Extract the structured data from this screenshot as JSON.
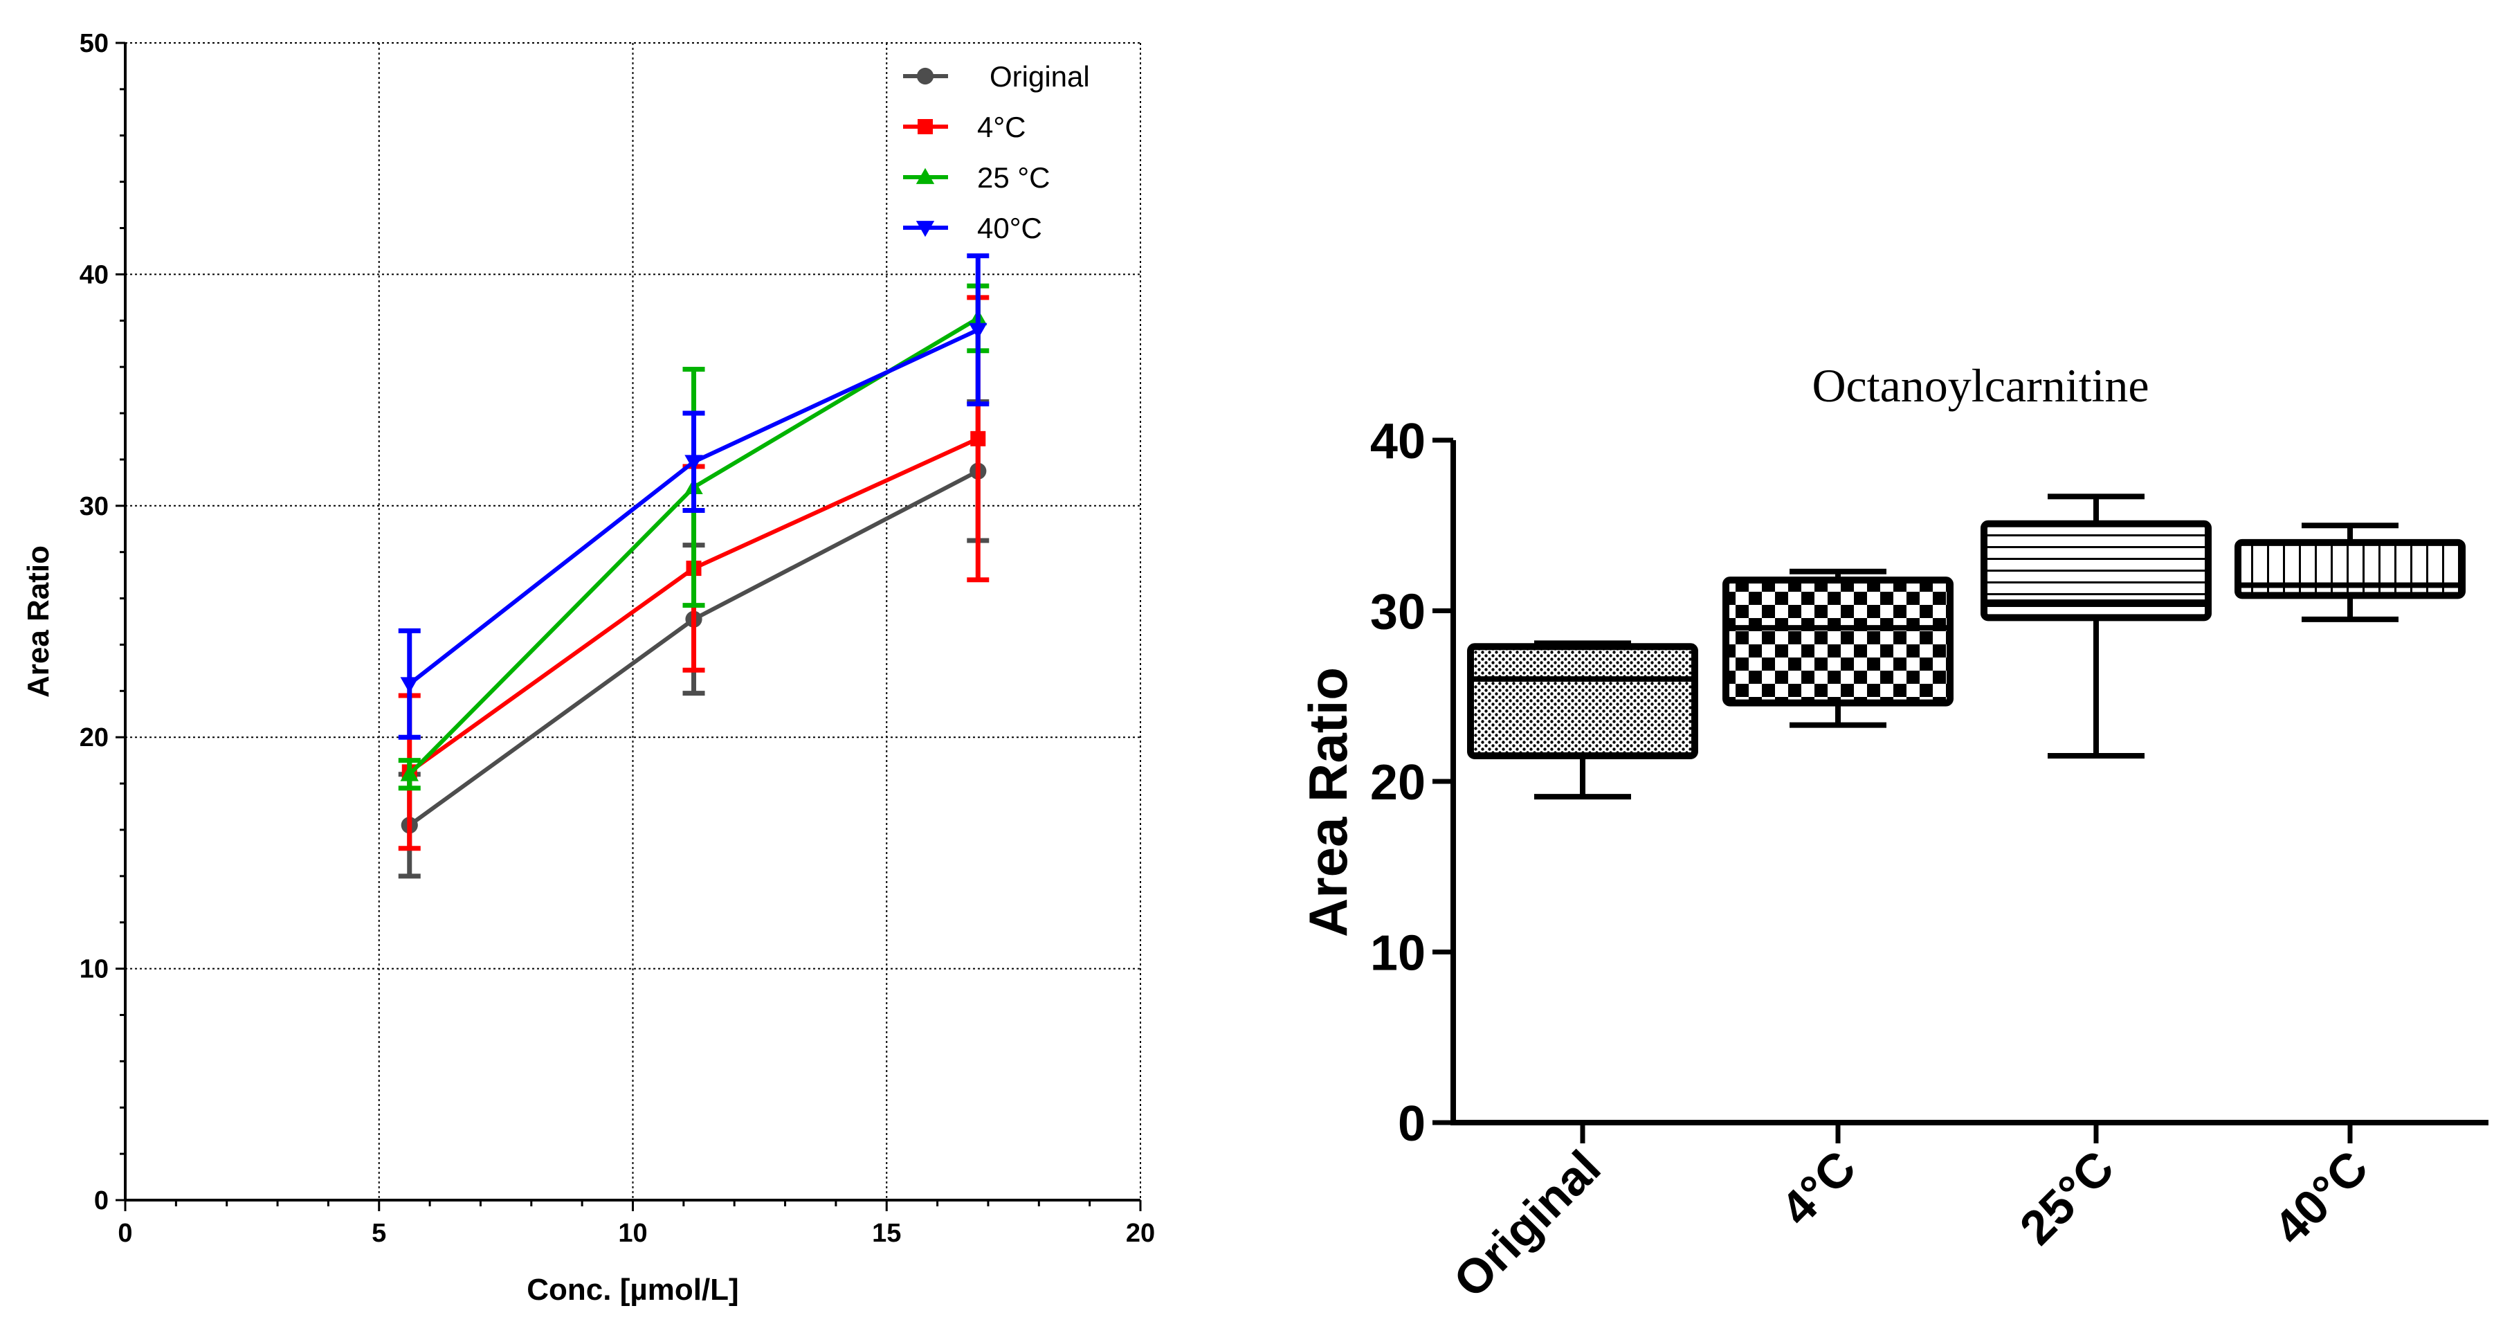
{
  "chart_data": [
    {
      "type": "line",
      "title": "",
      "xlabel": "Conc. [µmol/L]",
      "ylabel": "Area Ratio",
      "xlim": [
        0,
        20
      ],
      "ylim": [
        0,
        50
      ],
      "x_ticks": [
        0,
        5,
        10,
        15,
        20
      ],
      "y_ticks": [
        0,
        10,
        20,
        30,
        40,
        50
      ],
      "grid": true,
      "legend_position": "top-right",
      "x": [
        5.6,
        11.2,
        16.8
      ],
      "series": [
        {
          "name": "Original",
          "color": "#4d4d4d",
          "marker": "circle",
          "values": [
            16.2,
            25.1,
            31.5
          ],
          "error": [
            2.2,
            3.2,
            3.0
          ]
        },
        {
          "name": "4°C",
          "color": "#ff0000",
          "marker": "square",
          "values": [
            18.5,
            27.3,
            32.9
          ],
          "error": [
            3.3,
            4.4,
            6.1
          ]
        },
        {
          "name": "25 °C",
          "color": "#00b300",
          "marker": "triangle-up",
          "values": [
            18.4,
            30.8,
            38.1
          ],
          "error": [
            0.6,
            5.1,
            1.4
          ]
        },
        {
          "name": "40°C",
          "color": "#0000ff",
          "marker": "triangle-down",
          "values": [
            22.3,
            31.9,
            37.6
          ],
          "error": [
            2.3,
            2.1,
            3.2
          ]
        }
      ]
    },
    {
      "type": "box",
      "title": "Octanoylcarnitine",
      "xlabel": "",
      "ylabel": "Area Ratio",
      "ylim": [
        0,
        40
      ],
      "y_ticks": [
        0,
        10,
        20,
        30,
        40
      ],
      "categories": [
        "Original",
        "4°C",
        "25°C",
        "40°C"
      ],
      "fills": [
        "dots",
        "checker",
        "horizontal-lines",
        "vertical-lines"
      ],
      "boxes": [
        {
          "min": 19.1,
          "q1": 21.5,
          "median": 26.0,
          "q3": 27.9,
          "max": 28.1
        },
        {
          "min": 23.3,
          "q1": 24.6,
          "median": 29.0,
          "q3": 31.8,
          "max": 32.3
        },
        {
          "min": 21.5,
          "q1": 29.6,
          "median": 30.5,
          "q3": 35.1,
          "max": 36.7
        },
        {
          "min": 29.5,
          "q1": 30.9,
          "median": 31.5,
          "q3": 34.0,
          "max": 35.0
        }
      ]
    }
  ]
}
